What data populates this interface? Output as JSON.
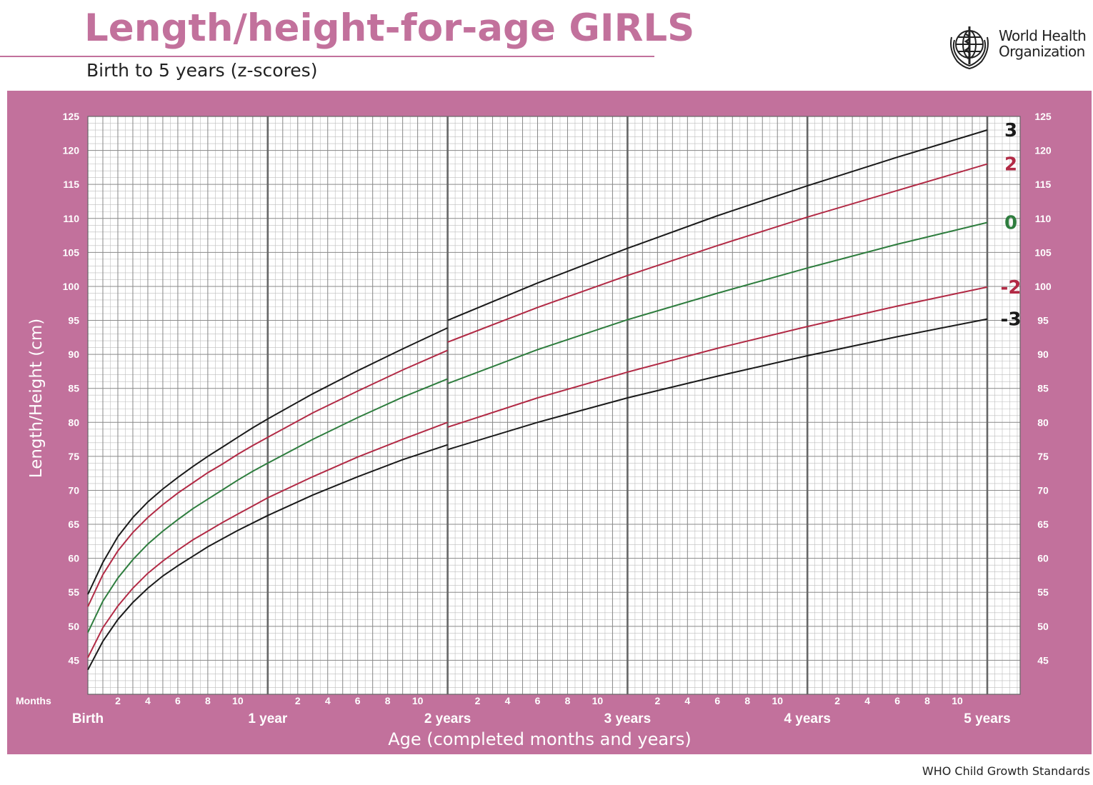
{
  "header": {
    "title": "Length/height-for-age GIRLS",
    "subtitle": "Birth to 5 years (z-scores)",
    "logo_line1": "World Health",
    "logo_line2": "Organization"
  },
  "footer": {
    "text": "WHO Child Growth Standards"
  },
  "colors": {
    "panel": "#c2719c",
    "z3": "#1a1a1a",
    "z2": "#b22a45",
    "z0": "#2e7d3e"
  },
  "chart_data": {
    "type": "line",
    "title": "",
    "xlabel": "Age (completed months and years)",
    "ylabel": "Length/Height (cm)",
    "xlim": [
      0,
      60
    ],
    "ylim": [
      40,
      125
    ],
    "x_unit": "months",
    "y_ticks": [
      45,
      50,
      55,
      60,
      65,
      70,
      75,
      80,
      85,
      90,
      95,
      100,
      105,
      110,
      115,
      120,
      125
    ],
    "month_axis_label": "Months",
    "month_ticks": [
      "2",
      "4",
      "6",
      "8",
      "10"
    ],
    "year_labels": [
      {
        "month": 0,
        "label": "Birth"
      },
      {
        "month": 12,
        "label": "1 year"
      },
      {
        "month": 24,
        "label": "2 years"
      },
      {
        "month": 36,
        "label": "3 years"
      },
      {
        "month": 48,
        "label": "4 years"
      },
      {
        "month": 60,
        "label": "5 years"
      }
    ],
    "series": [
      {
        "name": "3",
        "color_key": "z3",
        "points": [
          [
            0,
            54.7
          ],
          [
            1,
            59.4
          ],
          [
            2,
            63.2
          ],
          [
            3,
            66.0
          ],
          [
            4,
            68.3
          ],
          [
            5,
            70.2
          ],
          [
            6,
            71.9
          ],
          [
            7,
            73.5
          ],
          [
            8,
            75.0
          ],
          [
            9,
            76.4
          ],
          [
            10,
            77.8
          ],
          [
            11,
            79.2
          ],
          [
            12,
            80.5
          ],
          [
            15,
            84.2
          ],
          [
            18,
            87.6
          ],
          [
            21,
            90.8
          ],
          [
            24,
            93.9
          ],
          [
            24,
            95.0
          ],
          [
            30,
            100.5
          ],
          [
            36,
            105.6
          ],
          [
            42,
            110.4
          ],
          [
            48,
            114.8
          ],
          [
            54,
            119.0
          ],
          [
            60,
            123.0
          ]
        ]
      },
      {
        "name": "2",
        "color_key": "z2",
        "points": [
          [
            0,
            52.9
          ],
          [
            1,
            57.6
          ],
          [
            2,
            61.1
          ],
          [
            3,
            63.8
          ],
          [
            4,
            66.0
          ],
          [
            5,
            67.9
          ],
          [
            6,
            69.6
          ],
          [
            7,
            71.1
          ],
          [
            8,
            72.6
          ],
          [
            9,
            73.9
          ],
          [
            10,
            75.3
          ],
          [
            11,
            76.6
          ],
          [
            12,
            77.8
          ],
          [
            15,
            81.4
          ],
          [
            18,
            84.6
          ],
          [
            21,
            87.7
          ],
          [
            24,
            90.6
          ],
          [
            24,
            91.8
          ],
          [
            30,
            96.9
          ],
          [
            36,
            101.6
          ],
          [
            42,
            106.0
          ],
          [
            48,
            110.2
          ],
          [
            54,
            114.1
          ],
          [
            60,
            118.0
          ]
        ]
      },
      {
        "name": "0",
        "color_key": "z0",
        "points": [
          [
            0,
            49.1
          ],
          [
            1,
            53.7
          ],
          [
            2,
            57.1
          ],
          [
            3,
            59.8
          ],
          [
            4,
            62.1
          ],
          [
            5,
            64.0
          ],
          [
            6,
            65.7
          ],
          [
            7,
            67.3
          ],
          [
            8,
            68.7
          ],
          [
            9,
            70.1
          ],
          [
            10,
            71.5
          ],
          [
            11,
            72.8
          ],
          [
            12,
            74.0
          ],
          [
            15,
            77.5
          ],
          [
            18,
            80.7
          ],
          [
            21,
            83.7
          ],
          [
            24,
            86.4
          ],
          [
            24,
            85.7
          ],
          [
            30,
            90.7
          ],
          [
            36,
            95.1
          ],
          [
            42,
            99.0
          ],
          [
            48,
            102.7
          ],
          [
            54,
            106.2
          ],
          [
            60,
            109.4
          ]
        ]
      },
      {
        "name": "-2",
        "color_key": "z2",
        "points": [
          [
            0,
            45.4
          ],
          [
            1,
            49.8
          ],
          [
            2,
            53.0
          ],
          [
            3,
            55.6
          ],
          [
            4,
            57.8
          ],
          [
            5,
            59.6
          ],
          [
            6,
            61.2
          ],
          [
            7,
            62.7
          ],
          [
            8,
            64.0
          ],
          [
            9,
            65.3
          ],
          [
            10,
            66.5
          ],
          [
            11,
            67.7
          ],
          [
            12,
            68.9
          ],
          [
            15,
            72.0
          ],
          [
            18,
            74.9
          ],
          [
            21,
            77.5
          ],
          [
            24,
            80.0
          ],
          [
            24,
            79.3
          ],
          [
            30,
            83.6
          ],
          [
            36,
            87.4
          ],
          [
            42,
            90.9
          ],
          [
            48,
            94.1
          ],
          [
            54,
            97.1
          ],
          [
            60,
            99.9
          ]
        ]
      },
      {
        "name": "-3",
        "color_key": "z3",
        "points": [
          [
            0,
            43.6
          ],
          [
            1,
            47.8
          ],
          [
            2,
            51.0
          ],
          [
            3,
            53.5
          ],
          [
            4,
            55.6
          ],
          [
            5,
            57.4
          ],
          [
            6,
            58.9
          ],
          [
            7,
            60.3
          ],
          [
            8,
            61.7
          ],
          [
            9,
            62.9
          ],
          [
            10,
            64.1
          ],
          [
            11,
            65.2
          ],
          [
            12,
            66.3
          ],
          [
            15,
            69.3
          ],
          [
            18,
            72.0
          ],
          [
            21,
            74.5
          ],
          [
            24,
            76.7
          ],
          [
            24,
            76.0
          ],
          [
            30,
            80.0
          ],
          [
            36,
            83.6
          ],
          [
            42,
            86.8
          ],
          [
            48,
            89.8
          ],
          [
            54,
            92.6
          ],
          [
            60,
            95.2
          ]
        ]
      }
    ]
  }
}
